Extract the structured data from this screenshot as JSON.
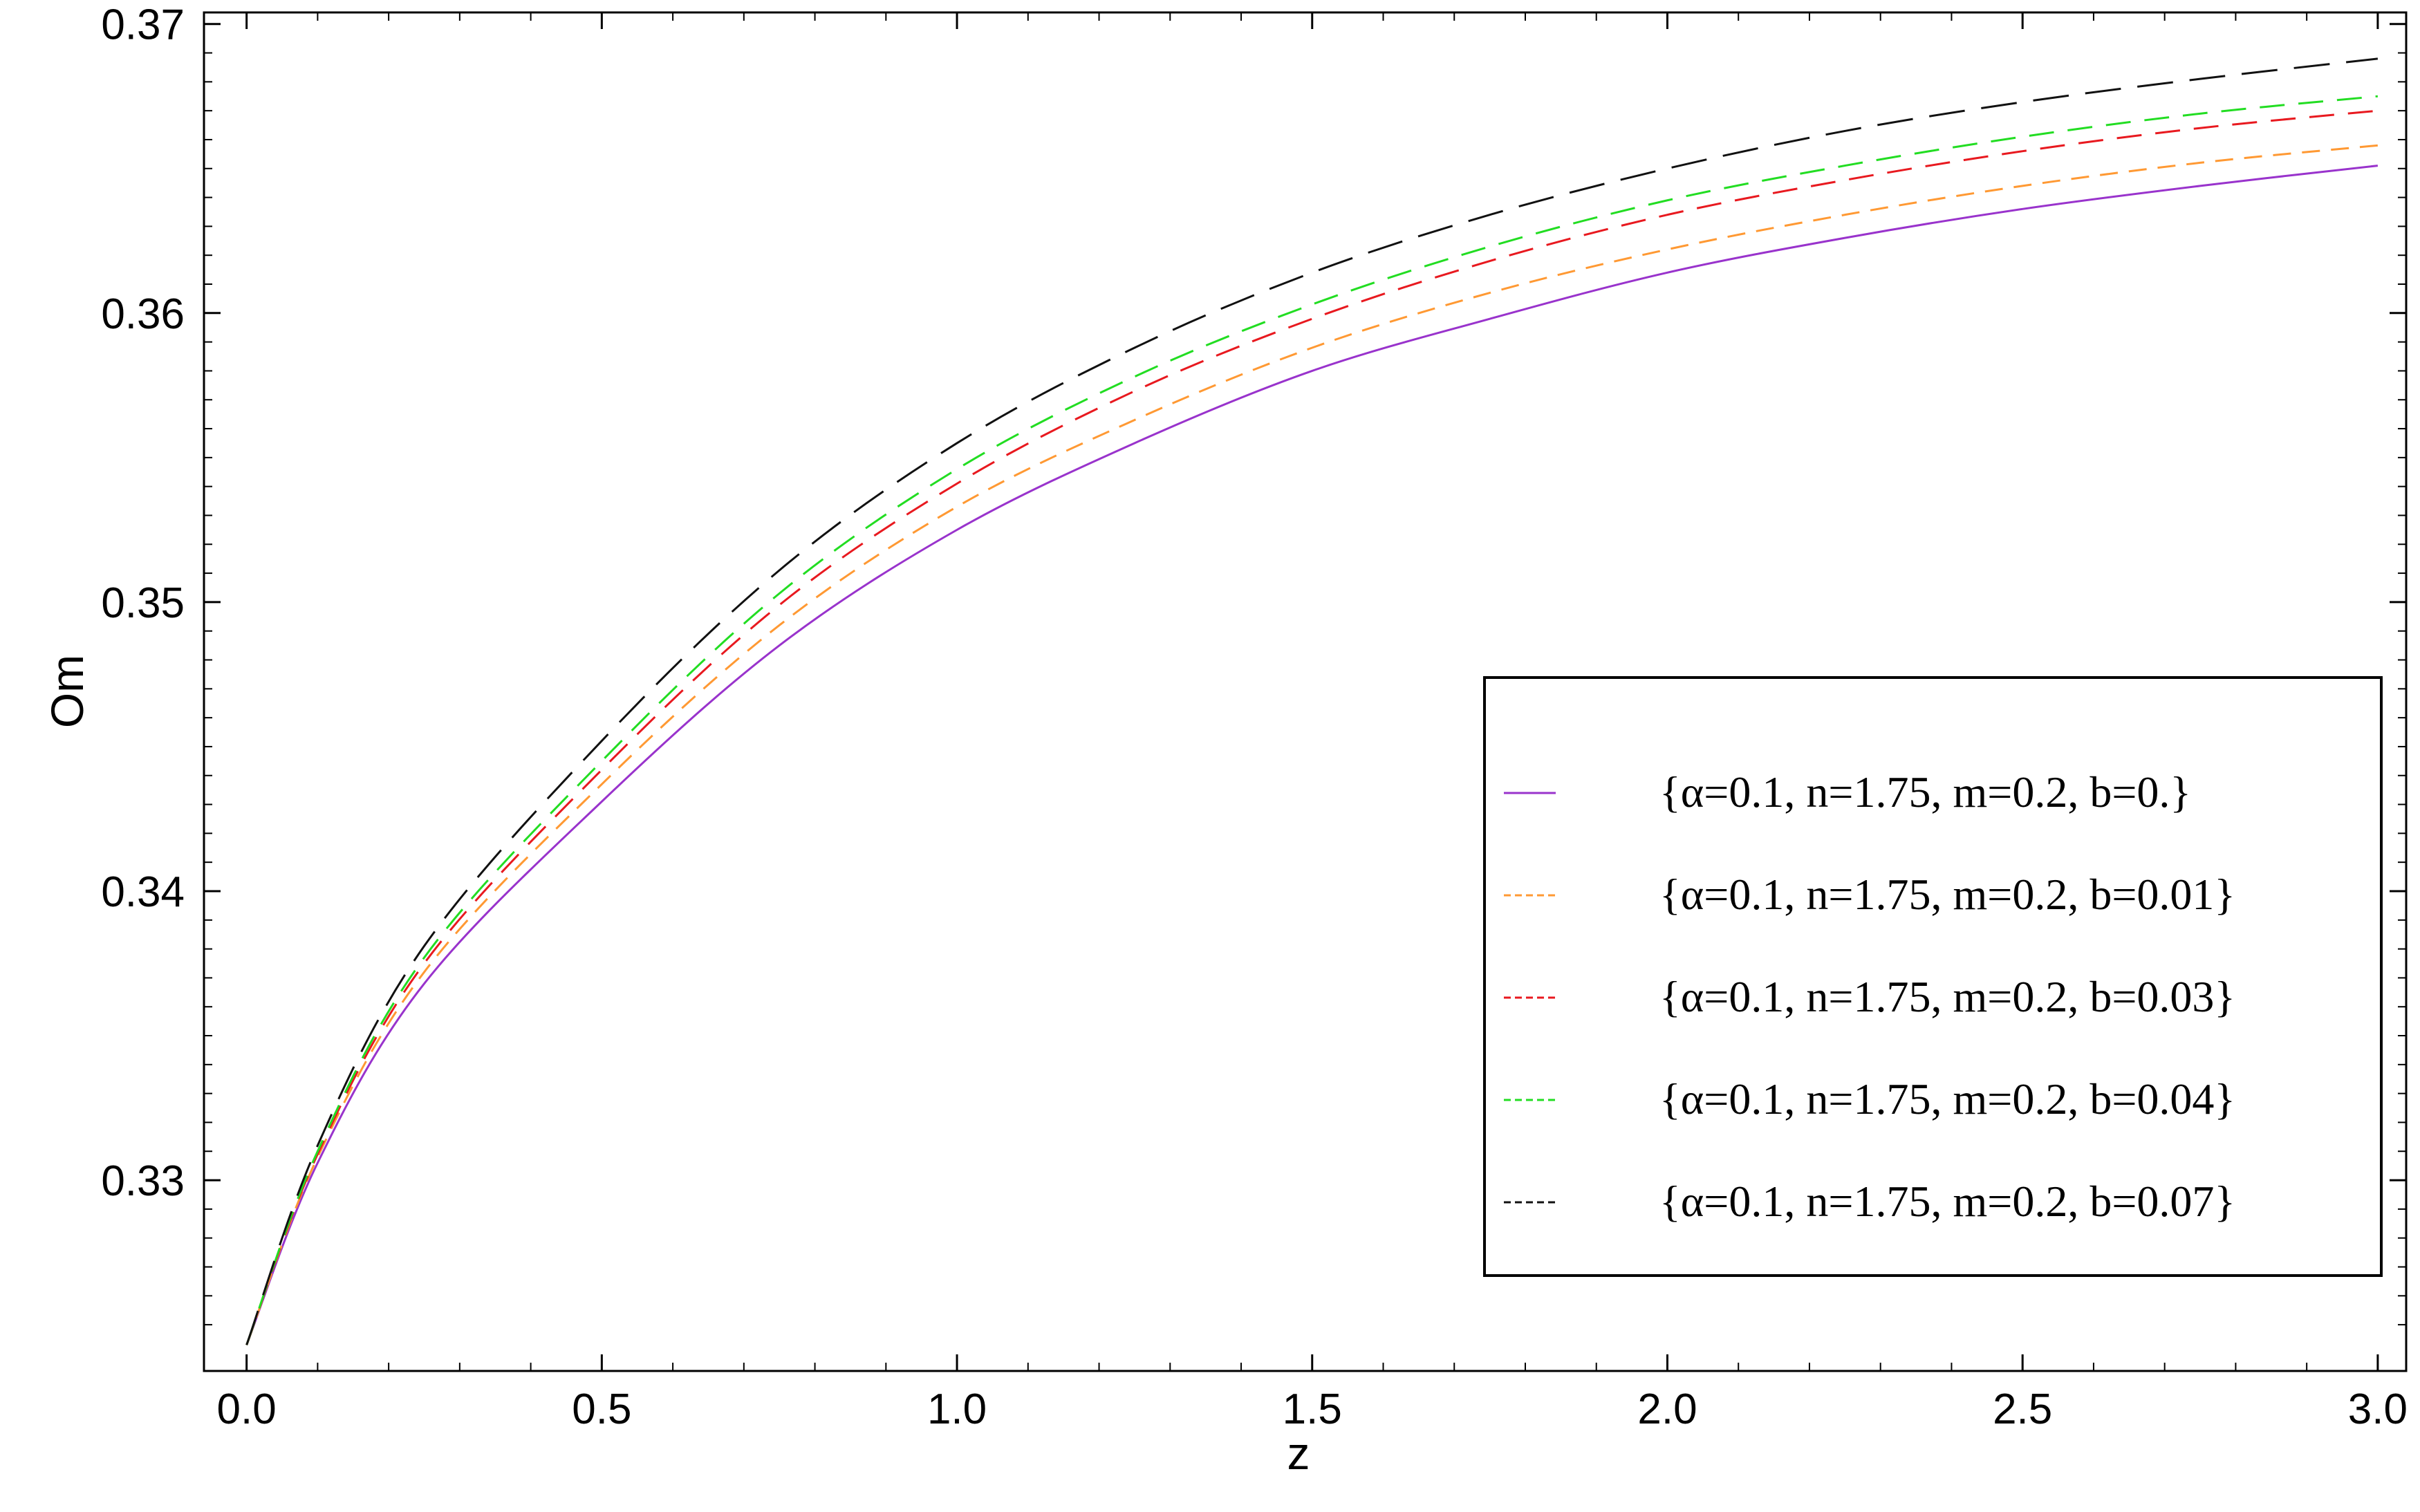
{
  "chart_data": {
    "type": "line",
    "title": "",
    "xlabel": "z",
    "ylabel": "Om",
    "xlim": [
      -0.06,
      3.04
    ],
    "ylim": [
      0.3234,
      0.3704
    ],
    "xticks": [
      "0.0",
      "0.5",
      "1.0",
      "1.5",
      "2.0",
      "2.5",
      "3.0"
    ],
    "yticks": [
      "0.33",
      "0.34",
      "0.35",
      "0.36",
      "0.37"
    ],
    "legend_position": "bottom-right",
    "grid": false,
    "x": [
      0,
      0.1,
      0.25,
      0.5,
      0.75,
      1.0,
      1.25,
      1.5,
      1.75,
      2.0,
      2.25,
      2.5,
      2.75,
      3.0
    ],
    "series": [
      {
        "name": "{α=0.1, n=1.75, m=0.2, b=0.}",
        "color": "#9933cc",
        "dash": "solid",
        "values": [
          0.3243,
          0.3306,
          0.3368,
          0.3431,
          0.3485,
          0.3525,
          0.3555,
          0.358,
          0.3598,
          0.3614,
          0.3626,
          0.3636,
          0.3644,
          0.3651
        ]
      },
      {
        "name": "{α=0.1, n=1.75, m=0.2, b=0.01}",
        "color": "#ff9933",
        "dash": "short",
        "values": [
          0.3243,
          0.3308,
          0.3372,
          0.3437,
          0.3492,
          0.3533,
          0.3563,
          0.3588,
          0.3607,
          0.3622,
          0.3634,
          0.3644,
          0.3652,
          0.3658
        ]
      },
      {
        "name": "{α=0.1, n=1.75, m=0.2, b=0.03}",
        "color": "#e8191f",
        "dash": "medium",
        "values": [
          0.3243,
          0.3309,
          0.3375,
          0.3442,
          0.3499,
          0.3541,
          0.3573,
          0.3598,
          0.3618,
          0.3634,
          0.3646,
          0.3656,
          0.3664,
          0.367
        ]
      },
      {
        "name": "{α=0.1, n=1.75, m=0.2, b=0.04}",
        "color": "#22dd22",
        "dash": "medium",
        "values": [
          0.3243,
          0.331,
          0.3377,
          0.3445,
          0.3503,
          0.3546,
          0.3578,
          0.3603,
          0.3623,
          0.3639,
          0.3651,
          0.3661,
          0.3669,
          0.3675
        ]
      },
      {
        "name": "{α=0.1, n=1.75, m=0.2, b=0.07}",
        "color": "#111111",
        "dash": "long",
        "values": [
          0.3243,
          0.3312,
          0.3381,
          0.3452,
          0.3511,
          0.3555,
          0.3588,
          0.3614,
          0.3634,
          0.365,
          0.3663,
          0.3673,
          0.3681,
          0.3688
        ]
      }
    ]
  }
}
